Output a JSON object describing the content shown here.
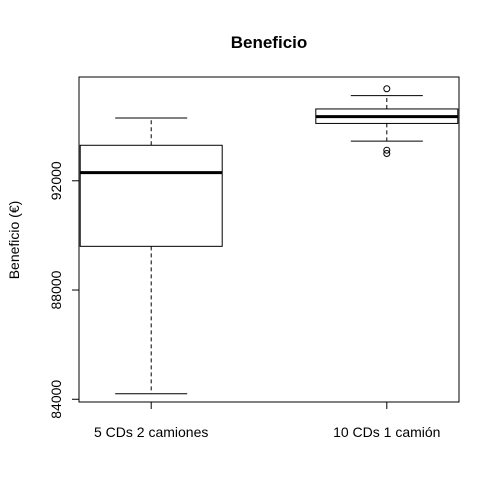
{
  "chart_data": {
    "type": "boxplot",
    "title": "Beneficio",
    "xlabel": "",
    "ylabel": "Beneficio (€)",
    "ylim": [
      83900,
      95800
    ],
    "yticks": [
      84000,
      88000,
      92000
    ],
    "ytick_labels": [
      "84000",
      "88000",
      "92000"
    ],
    "grid": false,
    "categories": [
      "5 CDs 2 camiones",
      "10 CDs 1 camión"
    ],
    "boxes": [
      {
        "name": "5 CDs 2 camiones",
        "whisker_low": 84200,
        "q1": 89600,
        "median": 92300,
        "q3": 93300,
        "whisker_high": 94300,
        "outliers": []
      },
      {
        "name": "10 CDs 1 camión",
        "whisker_low": 93450,
        "q1": 94100,
        "median": 94350,
        "q3": 94630,
        "whisker_high": 95120,
        "outliers": [
          93000,
          93120,
          95370
        ]
      }
    ]
  }
}
